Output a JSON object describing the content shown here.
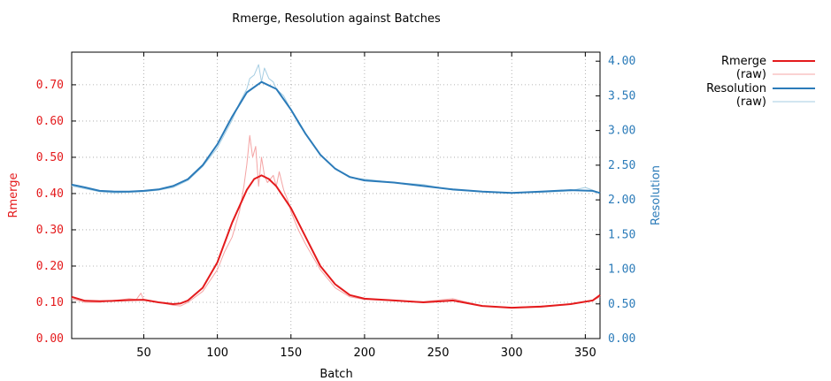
{
  "chart_data": {
    "type": "line",
    "title": "Rmerge, Resolution against Batches",
    "xlabel": "Batch",
    "ylabel_left": "Rmerge",
    "ylabel_right": "Resolution",
    "xlim": [
      1,
      360
    ],
    "ylim_left": [
      0,
      0.79
    ],
    "ylim_right": [
      0,
      4.13
    ],
    "x_ticks": [
      "50",
      "100",
      "150",
      "200",
      "250",
      "300",
      "350"
    ],
    "y_left_ticks": [
      "0.00",
      "0.10",
      "0.20",
      "0.30",
      "0.40",
      "0.50",
      "0.60",
      "0.70"
    ],
    "y_right_ticks": [
      "0.00",
      "0.50",
      "1.00",
      "1.50",
      "2.00",
      "2.50",
      "3.00",
      "3.50",
      "4.00"
    ],
    "grid": true,
    "legend_position": "top-right",
    "colors": {
      "rmerge": "#e41a1c",
      "rmerge_raw": "#f4a4a4",
      "resolution": "#2b7bb9",
      "resolution_raw": "#a6cee3"
    },
    "series": [
      {
        "name": "Rmerge",
        "axis": "left",
        "style": "smooth",
        "x": [
          1,
          10,
          20,
          30,
          40,
          50,
          60,
          70,
          75,
          80,
          90,
          100,
          110,
          120,
          125,
          130,
          135,
          140,
          150,
          160,
          170,
          180,
          190,
          200,
          220,
          240,
          260,
          280,
          300,
          320,
          340,
          355,
          360
        ],
        "y": [
          0.115,
          0.104,
          0.103,
          0.104,
          0.106,
          0.107,
          0.1,
          0.095,
          0.097,
          0.105,
          0.14,
          0.21,
          0.32,
          0.41,
          0.44,
          0.45,
          0.44,
          0.42,
          0.36,
          0.28,
          0.2,
          0.15,
          0.12,
          0.11,
          0.105,
          0.1,
          0.105,
          0.09,
          0.085,
          0.088,
          0.095,
          0.105,
          0.12
        ]
      },
      {
        "name": "(raw)",
        "axis": "left",
        "style": "raw",
        "x": [
          1,
          10,
          20,
          30,
          40,
          45,
          48,
          50,
          60,
          70,
          75,
          80,
          90,
          100,
          105,
          110,
          115,
          118,
          120,
          122,
          124,
          126,
          128,
          130,
          132,
          134,
          136,
          138,
          140,
          142,
          145,
          148,
          150,
          155,
          160,
          170,
          180,
          190,
          200,
          220,
          240,
          260,
          280,
          300,
          320,
          340,
          355,
          360
        ],
        "y": [
          0.11,
          0.1,
          0.1,
          0.105,
          0.11,
          0.108,
          0.125,
          0.105,
          0.1,
          0.092,
          0.09,
          0.1,
          0.13,
          0.19,
          0.24,
          0.28,
          0.35,
          0.42,
          0.48,
          0.56,
          0.5,
          0.53,
          0.42,
          0.5,
          0.45,
          0.43,
          0.44,
          0.45,
          0.42,
          0.46,
          0.41,
          0.38,
          0.35,
          0.3,
          0.26,
          0.19,
          0.14,
          0.115,
          0.108,
          0.104,
          0.102,
          0.11,
          0.09,
          0.086,
          0.09,
          0.094,
          0.105,
          0.115
        ]
      },
      {
        "name": "Resolution",
        "axis": "right",
        "style": "smooth",
        "x": [
          1,
          10,
          20,
          30,
          40,
          50,
          60,
          70,
          80,
          90,
          100,
          110,
          120,
          130,
          140,
          150,
          160,
          170,
          180,
          190,
          200,
          220,
          240,
          260,
          280,
          300,
          320,
          340,
          355,
          360
        ],
        "y": [
          2.22,
          2.18,
          2.13,
          2.12,
          2.12,
          2.13,
          2.15,
          2.2,
          2.3,
          2.5,
          2.8,
          3.2,
          3.55,
          3.7,
          3.6,
          3.3,
          2.95,
          2.65,
          2.45,
          2.33,
          2.28,
          2.25,
          2.2,
          2.15,
          2.12,
          2.1,
          2.12,
          2.14,
          2.13,
          2.1
        ]
      },
      {
        "name": "(raw)",
        "axis": "right",
        "style": "raw",
        "x": [
          1,
          10,
          20,
          30,
          40,
          50,
          60,
          70,
          80,
          90,
          100,
          105,
          110,
          115,
          120,
          122,
          125,
          128,
          130,
          132,
          135,
          138,
          140,
          145,
          150,
          155,
          160,
          170,
          180,
          190,
          200,
          220,
          240,
          260,
          280,
          300,
          320,
          340,
          350,
          355,
          360
        ],
        "y": [
          2.2,
          2.16,
          2.12,
          2.1,
          2.11,
          2.12,
          2.14,
          2.18,
          2.28,
          2.48,
          2.75,
          2.95,
          3.15,
          3.4,
          3.6,
          3.75,
          3.8,
          3.95,
          3.7,
          3.9,
          3.75,
          3.7,
          3.6,
          3.5,
          3.3,
          3.1,
          2.95,
          2.65,
          2.45,
          2.32,
          2.3,
          2.25,
          2.22,
          2.14,
          2.12,
          2.1,
          2.11,
          2.13,
          2.18,
          2.14,
          2.1
        ]
      }
    ]
  }
}
